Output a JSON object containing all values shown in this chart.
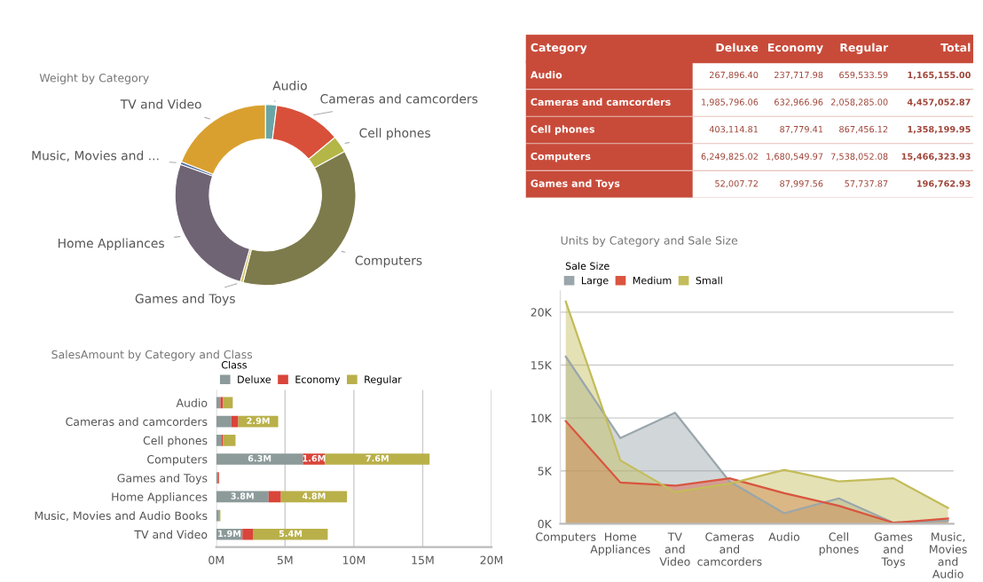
{
  "chart_data": [
    {
      "type": "donut",
      "title": "Weight by Category",
      "categories": [
        "Audio",
        "Cameras and camcorders",
        "Cell phones",
        "Computers",
        "Games and Toys",
        "Home Appliances",
        "Music, Movies and ...",
        "TV and Video"
      ],
      "values": [
        2,
        12,
        3,
        37,
        0.5,
        26,
        0.5,
        19
      ],
      "colors": [
        "#6aa5a5",
        "#d9503a",
        "#b5b648",
        "#7d7b4b",
        "#d4c25a",
        "#6f6474",
        "#4f6aa0",
        "#d9a02f"
      ],
      "legend": false
    },
    {
      "type": "other",
      "ylabel": "Category",
      "categories": [
        "Deluxe",
        "Economy",
        "Regular",
        "Total"
      ],
      "y_categories": [
        "Audio",
        "Cameras and camcorders",
        "Cell phones",
        "Computers",
        "Games and Toys"
      ],
      "cell_labels": [
        [
          "267,896.40",
          "237,717.98",
          "659,533.59",
          "1,165,155.00"
        ],
        [
          "1,985,796.06",
          "632,966.96",
          "2,058,285.00",
          "4,457,052.87"
        ],
        [
          "403,114.81",
          "87,779.41",
          "867,456.12",
          "1,358,199.95"
        ],
        [
          "6,249,825.02",
          "1,680,549.97",
          "7,538,052.08",
          "15,466,323.93"
        ],
        [
          "52,007.72",
          "87,997.56",
          "57,737.87",
          "196,762.93"
        ]
      ]
    },
    {
      "type": "bar",
      "orientation": "horizontal",
      "stacked": true,
      "title": "SalesAmount by Category and Class",
      "legend_title": "Class",
      "legend": "top left",
      "categories": [
        "Audio",
        "Cameras and camcorders",
        "Cell phones",
        "Computers",
        "Games and Toys",
        "Home Appliances",
        "Music, Movies and Audio Books",
        "TV and Video"
      ],
      "series": [
        {
          "name": "Deluxe",
          "color": "#8c9a9a",
          "values": [
            0.3,
            1.1,
            0.4,
            6.3,
            0.1,
            3.8,
            0.2,
            1.9
          ],
          "value_labels": [
            null,
            null,
            null,
            "6.3M",
            null,
            "3.8M",
            null,
            "1.9M"
          ]
        },
        {
          "name": "Economy",
          "color": "#d9453a",
          "values": [
            0.2,
            0.5,
            0.1,
            1.6,
            0.1,
            0.9,
            0.0,
            0.8
          ],
          "value_labels": [
            null,
            null,
            null,
            "1.6M",
            null,
            null,
            null,
            null
          ]
        },
        {
          "name": "Regular",
          "color": "#b9b04a",
          "values": [
            0.7,
            2.9,
            0.9,
            7.6,
            0.0,
            4.8,
            0.1,
            5.4
          ],
          "value_labels": [
            null,
            "2.9M",
            null,
            "7.6M",
            null,
            "4.8M",
            null,
            "5.4M"
          ]
        }
      ],
      "xlim": [
        0,
        20
      ],
      "xticks": [
        {
          "value": 0,
          "label": "0M"
        },
        {
          "value": 5,
          "label": "5M"
        },
        {
          "value": 10,
          "label": "10M"
        },
        {
          "value": 15,
          "label": "15M"
        },
        {
          "value": 20,
          "label": "20M"
        }
      ],
      "grid": "x"
    },
    {
      "type": "area",
      "title": "Units by Category and Sale Size",
      "legend_title": "Sale Size",
      "legend": "top left",
      "categories": [
        "Computers",
        "Home Appliances",
        "TV and Video",
        "Cameras and camcorders",
        "Audio",
        "Cell phones",
        "Games and Toys",
        "Music, Movies and Audio Books"
      ],
      "series": [
        {
          "name": "Large",
          "color": "#9aa6ab",
          "values": [
            15.8,
            8.1,
            10.5,
            4.0,
            1.0,
            2.4,
            0.1,
            0.3
          ]
        },
        {
          "name": "Medium",
          "color": "#d9553f",
          "values": [
            9.7,
            3.9,
            3.6,
            4.3,
            2.9,
            1.7,
            0.1,
            0.5
          ]
        },
        {
          "name": "Small",
          "color": "#c3bc5a",
          "values": [
            21.0,
            6.0,
            3.0,
            3.8,
            5.1,
            4.0,
            4.3,
            1.5
          ]
        }
      ],
      "ylim": [
        0,
        22
      ],
      "yticks": [
        {
          "value": 0,
          "label": "0K"
        },
        {
          "value": 5,
          "label": "5K"
        },
        {
          "value": 10,
          "label": "10K"
        },
        {
          "value": 15,
          "label": "15K"
        },
        {
          "value": 20,
          "label": "20K"
        }
      ],
      "grid": "y"
    }
  ]
}
